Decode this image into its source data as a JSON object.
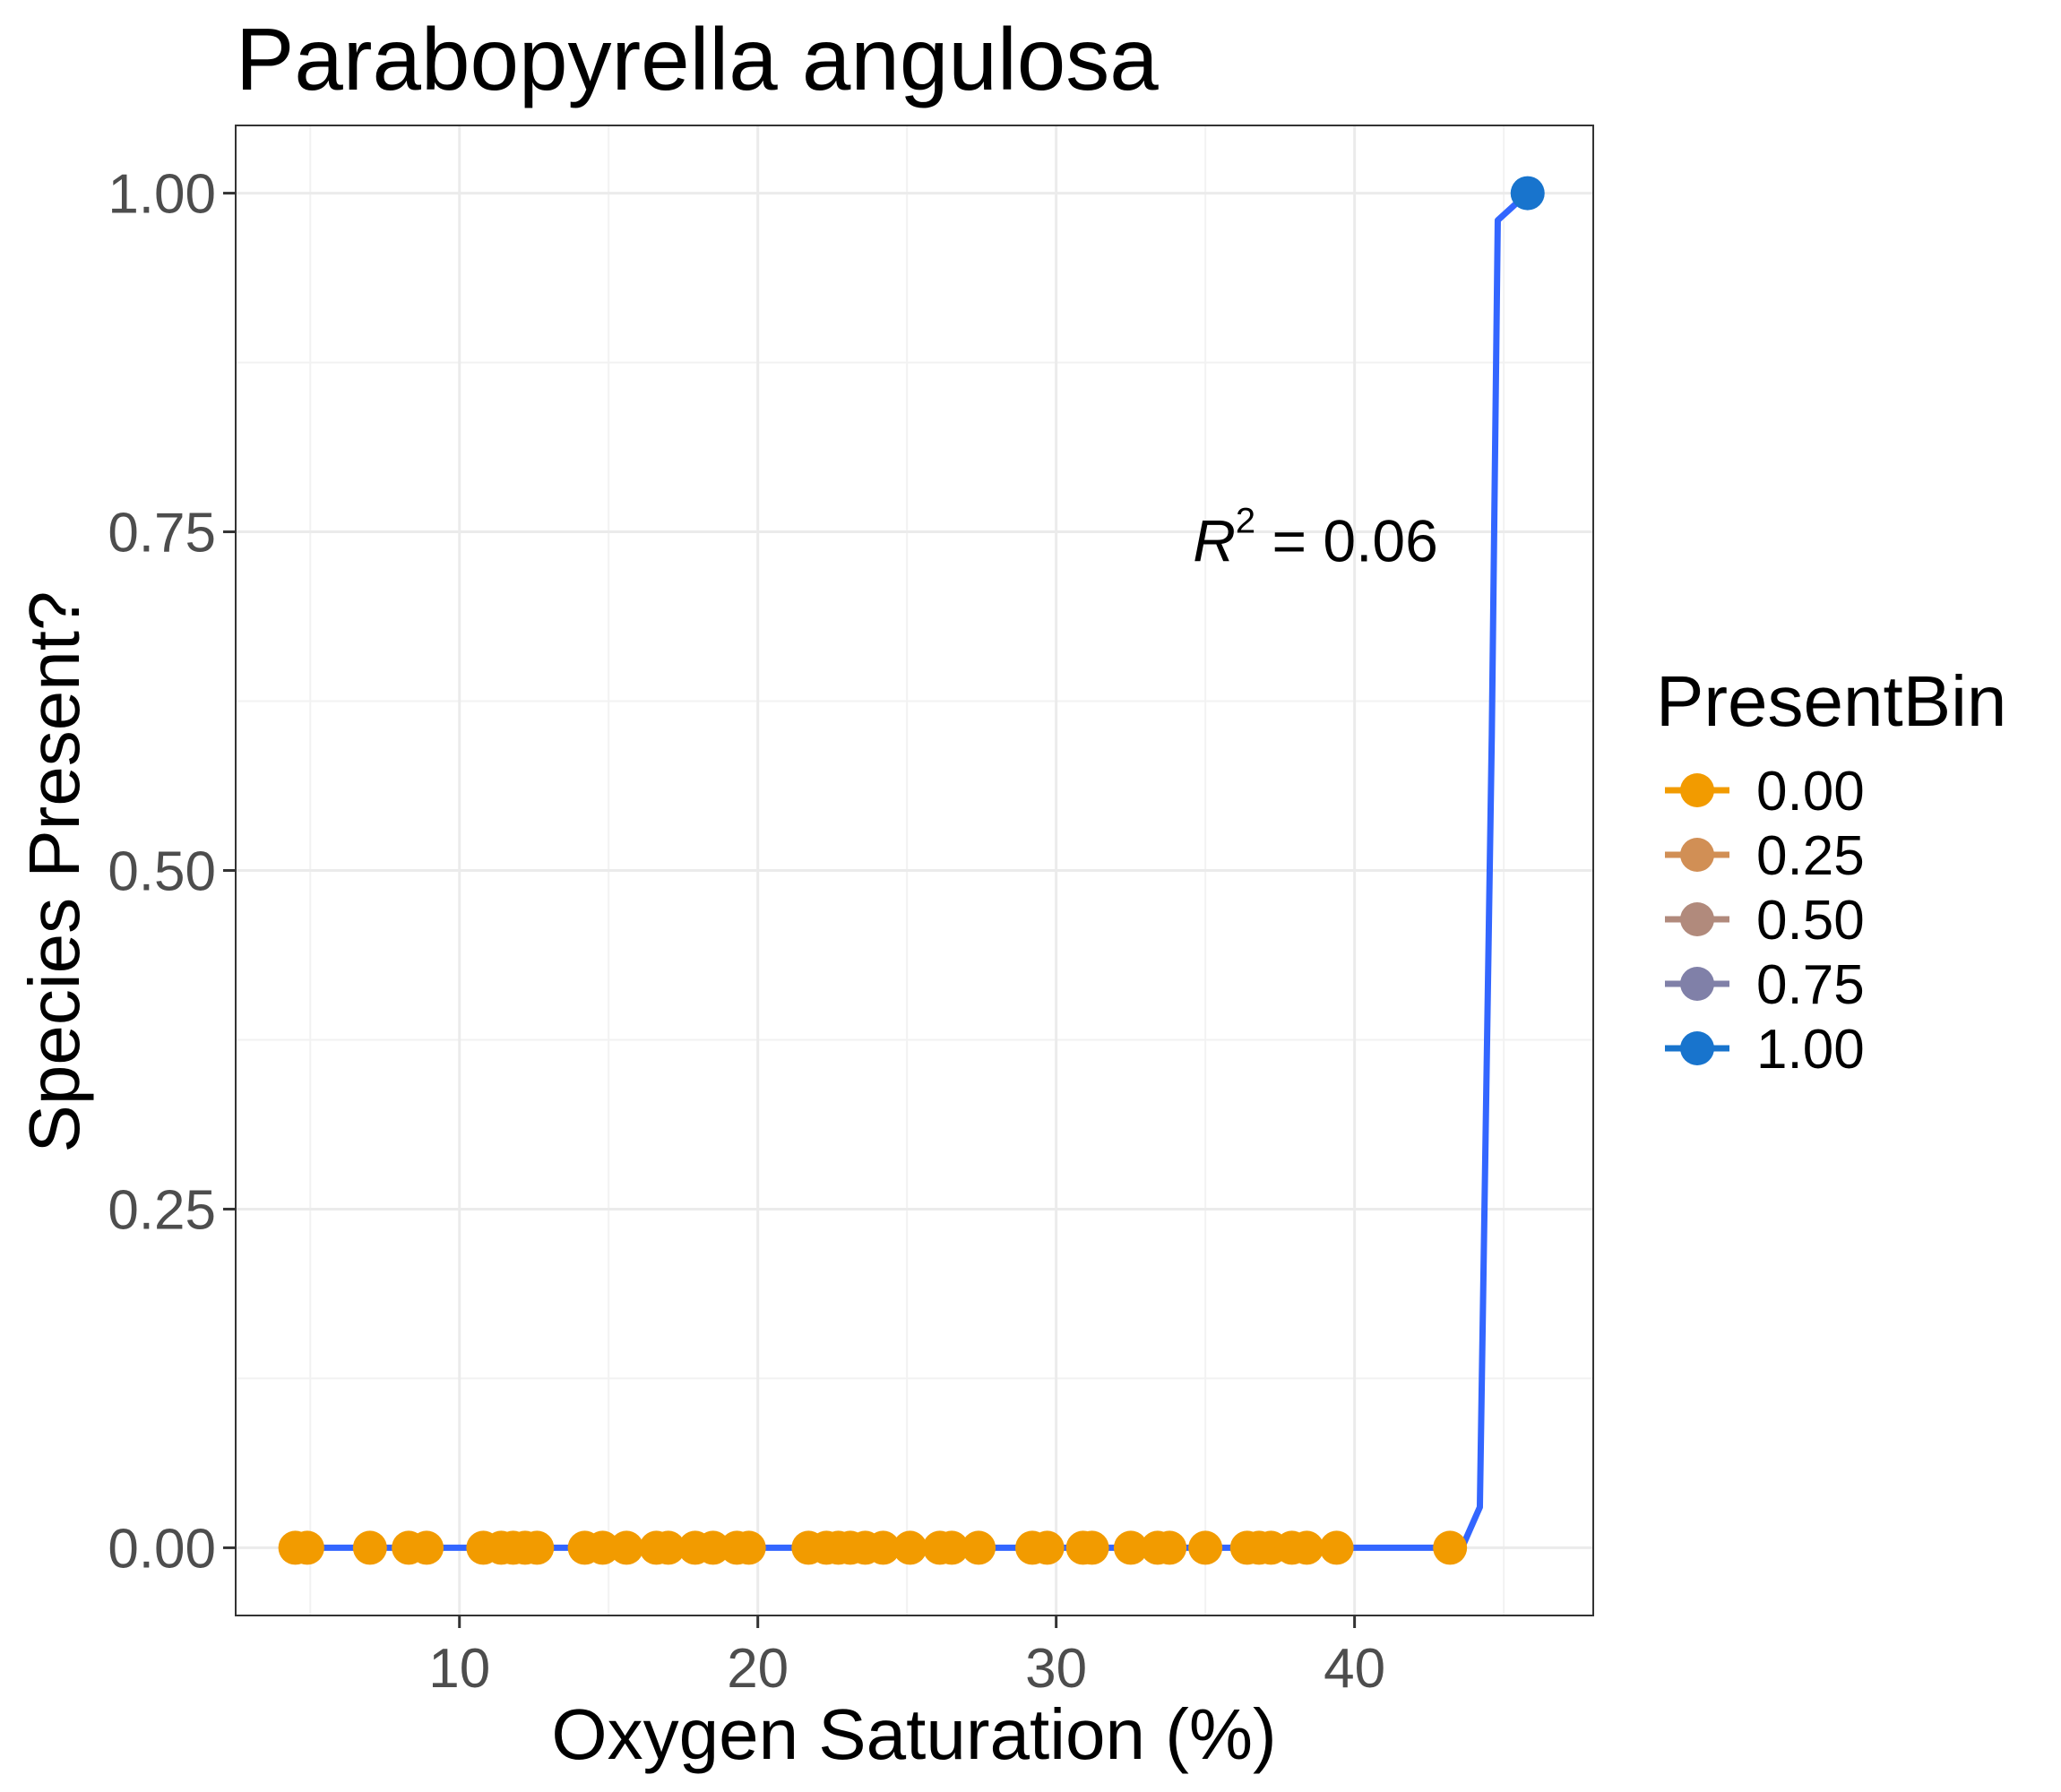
{
  "chart_data": {
    "type": "scatter",
    "title": "Parabopyrella angulosa",
    "xlabel": "Oxygen Saturation (%)",
    "ylabel": "Species Present?",
    "xlim": [
      2.5,
      48
    ],
    "ylim": [
      -0.05,
      1.05
    ],
    "x_ticks": [
      10,
      20,
      30,
      40
    ],
    "x_tick_labels": [
      "10",
      "20",
      "30",
      "40"
    ],
    "y_ticks": [
      0,
      0.25,
      0.5,
      0.75,
      1
    ],
    "y_tick_labels": [
      "0.00",
      "0.25",
      "0.50",
      "0.75",
      "1.00"
    ],
    "grid": true,
    "legend": {
      "title": "PresentBin",
      "position": "right",
      "entries": [
        {
          "label": "0.00",
          "color": "#F29B00"
        },
        {
          "label": "0.25",
          "color": "#D18F55"
        },
        {
          "label": "0.50",
          "color": "#B18A7C"
        },
        {
          "label": "0.75",
          "color": "#8080A8"
        },
        {
          "label": "1.00",
          "color": "#1874CD"
        }
      ]
    },
    "points": {
      "x": [
        4.5,
        4.9,
        7.0,
        8.3,
        8.9,
        10.8,
        11.4,
        11.8,
        12.2,
        12.6,
        14.2,
        14.8,
        15.6,
        16.6,
        17.0,
        17.9,
        18.5,
        19.3,
        19.7,
        21.7,
        22.3,
        22.7,
        23.1,
        23.6,
        24.2,
        25.1,
        26.1,
        26.5,
        27.4,
        29.2,
        29.7,
        30.9,
        31.2,
        32.5,
        33.4,
        33.8,
        35.0,
        36.4,
        36.8,
        37.2,
        37.9,
        38.4,
        39.4,
        43.2,
        45.8
      ],
      "y": [
        0,
        0,
        0,
        0,
        0,
        0,
        0,
        0,
        0,
        0,
        0,
        0,
        0,
        0,
        0,
        0,
        0,
        0,
        0,
        0,
        0,
        0,
        0,
        0,
        0,
        0,
        0,
        0,
        0,
        0,
        0,
        0,
        0,
        0,
        0,
        0,
        0,
        0,
        0,
        0,
        0,
        0,
        0,
        0,
        1
      ]
    },
    "fit_line": {
      "color": "#3366FF",
      "x": [
        4.5,
        43.6,
        44.2,
        44.6,
        44.8,
        45.8
      ],
      "y": [
        0,
        0,
        0.03,
        0.6,
        0.98,
        1.0
      ]
    },
    "annotation": {
      "text": "R",
      "superscript": "2",
      "value_text": " = 0.06",
      "x": 42.8,
      "y": 0.74
    }
  }
}
